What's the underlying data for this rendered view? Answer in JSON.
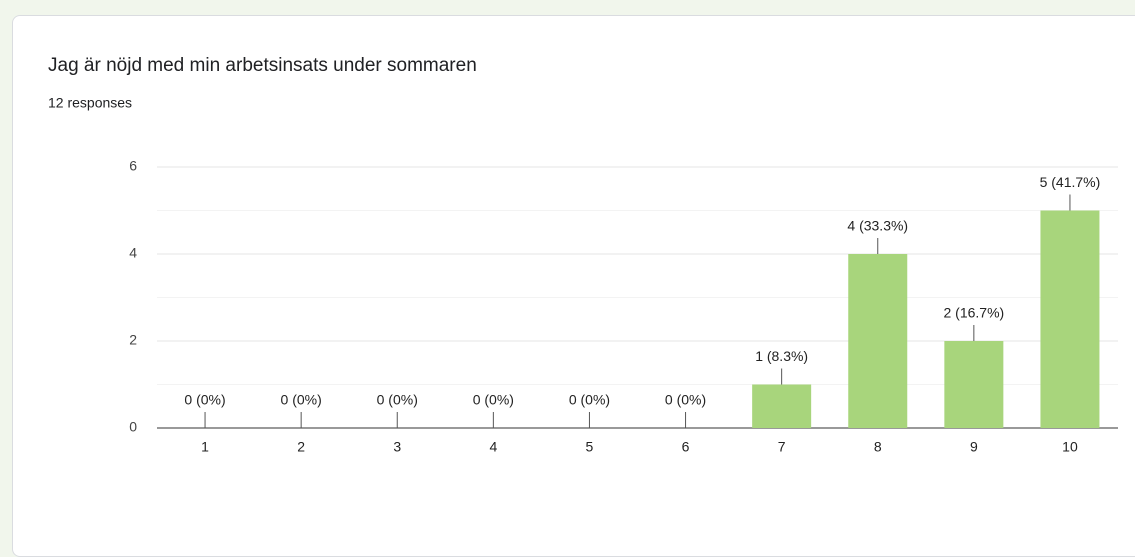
{
  "chart_data": {
    "type": "bar",
    "title": "Jag är nöjd med min arbetsinsats under sommaren",
    "subtitle": "12 responses",
    "categories": [
      "1",
      "2",
      "3",
      "4",
      "5",
      "6",
      "7",
      "8",
      "9",
      "10"
    ],
    "values": [
      0,
      0,
      0,
      0,
      0,
      0,
      1,
      4,
      2,
      5
    ],
    "value_labels": [
      "0 (0%)",
      "0 (0%)",
      "0 (0%)",
      "0 (0%)",
      "0 (0%)",
      "0 (0%)",
      "1 (8.3%)",
      "4 (33.3%)",
      "2 (16.7%)",
      "5 (41.7%)"
    ],
    "color": "#a8d57c",
    "ylim": [
      0,
      6
    ],
    "yticks": [
      0,
      2,
      4,
      6
    ],
    "minor_yticks": [
      1,
      3,
      5
    ],
    "grid": true
  }
}
